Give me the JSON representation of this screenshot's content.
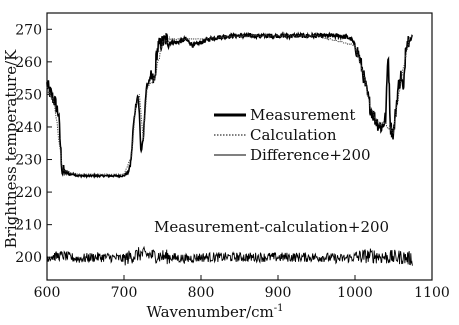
{
  "chart_data": {
    "type": "line",
    "xlabel": "Wavenumber/cm",
    "xlabel_sup": "-1",
    "ylabel": "Brightness temperature/K",
    "xlim": [
      600,
      1100
    ],
    "ylim": [
      193,
      275
    ],
    "x_ticks": [
      600,
      700,
      800,
      900,
      1000,
      1100
    ],
    "y_ticks": [
      200,
      210,
      220,
      230,
      240,
      250,
      260,
      270
    ],
    "grid": false,
    "legend_position": "center-right",
    "legend": [
      {
        "label": "Measurement",
        "style": "thick-solid"
      },
      {
        "label": "Calculation",
        "style": "dotted"
      },
      {
        "label": "Difference+200",
        "style": "thin-solid"
      }
    ],
    "annotations": [
      {
        "text": "Measurement-calculation+200"
      }
    ],
    "series": [
      {
        "name": "Measurement",
        "x": [
          600,
          605,
          610,
          615,
          618,
          620,
          625,
          630,
          635,
          640,
          650,
          660,
          670,
          680,
          690,
          700,
          705,
          708,
          710,
          712,
          715,
          718,
          720,
          722,
          725,
          728,
          730,
          735,
          740,
          742,
          745,
          750,
          755,
          760,
          770,
          780,
          790,
          800,
          810,
          820,
          840,
          860,
          880,
          900,
          920,
          940,
          960,
          980,
          990,
          995,
          1000,
          1005,
          1010,
          1015,
          1020,
          1025,
          1030,
          1035,
          1040,
          1043,
          1046,
          1050,
          1053,
          1056,
          1060,
          1063,
          1066,
          1070,
          1073,
          1075
        ],
        "y": [
          253,
          250,
          248,
          244,
          232,
          226,
          226,
          225.5,
          225.5,
          225,
          225,
          225,
          225,
          225,
          225,
          225,
          226,
          228,
          232,
          240,
          246,
          250,
          244,
          232,
          236,
          249,
          253,
          255,
          254,
          262,
          265,
          266,
          267,
          266,
          266,
          267,
          265,
          266,
          267,
          267.5,
          268,
          268,
          268,
          268,
          268,
          268,
          268,
          268,
          267.5,
          267,
          265,
          262,
          257,
          251,
          246,
          243,
          241,
          240,
          243,
          264,
          240,
          238,
          245,
          252,
          256,
          250,
          266,
          267,
          267,
          268
        ]
      },
      {
        "name": "Calculation",
        "x": [
          600,
          610,
          620,
          630,
          640,
          660,
          680,
          700,
          710,
          715,
          720,
          725,
          730,
          740,
          750,
          760,
          780,
          800,
          850,
          900,
          950,
          1000,
          1010,
          1020,
          1030,
          1040,
          1050,
          1060,
          1070,
          1075
        ],
        "y": [
          252,
          247,
          227,
          226,
          225.5,
          225.5,
          225.5,
          225.5,
          231,
          246,
          250,
          236,
          252,
          255,
          266,
          267,
          267,
          267,
          268,
          268,
          268,
          265,
          257,
          246,
          241,
          241,
          239,
          255,
          267,
          268
        ]
      },
      {
        "name": "Difference+200",
        "x": [
          600,
          620,
          640,
          660,
          680,
          700,
          720,
          740,
          760,
          780,
          800,
          820,
          840,
          860,
          880,
          900,
          920,
          940,
          960,
          980,
          1000,
          1020,
          1040,
          1060,
          1075
        ],
        "y": [
          200,
          200.5,
          199.5,
          200,
          200,
          199.5,
          201,
          200.5,
          200,
          199.5,
          200,
          200,
          200,
          200,
          200,
          200,
          200,
          200,
          200,
          199.5,
          200,
          200.5,
          200,
          200,
          199.5
        ]
      }
    ]
  }
}
